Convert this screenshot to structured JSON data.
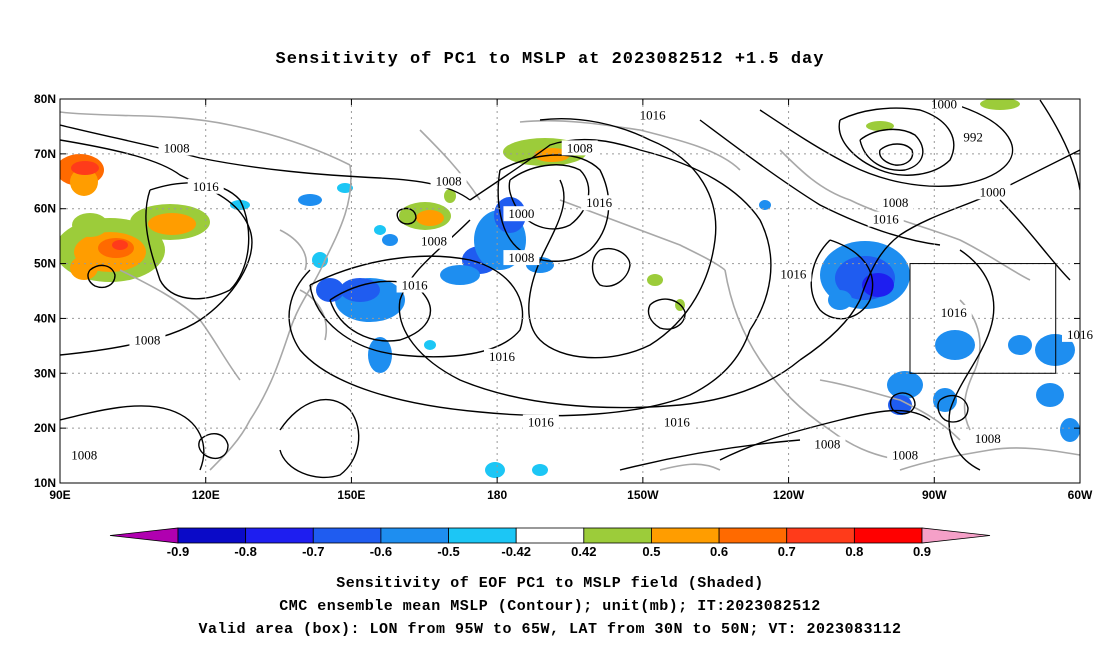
{
  "title": "Sensitivity of PC1 to MSLP at 2023082512 +1.5 day",
  "captions": [
    "Sensitivity of EOF PC1 to MSLP field (Shaded)",
    "CMC ensemble mean MSLP (Contour); unit(mb); IT:2023082512",
    "Valid area (box): LON from 95W to 65W, LAT from 30N to 50N; VT: 2023083112"
  ],
  "map": {
    "lon_range": [
      90,
      300
    ],
    "lat_range": [
      10,
      80
    ],
    "lon_ticks": [
      {
        "lon": 90,
        "label": "90E"
      },
      {
        "lon": 120,
        "label": "120E"
      },
      {
        "lon": 150,
        "label": "150E"
      },
      {
        "lon": 180,
        "label": "180"
      },
      {
        "lon": 210,
        "label": "150W"
      },
      {
        "lon": 240,
        "label": "120W"
      },
      {
        "lon": 270,
        "label": "90W"
      },
      {
        "lon": 300,
        "label": "60W"
      }
    ],
    "lat_ticks": [
      {
        "lat": 80,
        "label": "80N"
      },
      {
        "lat": 70,
        "label": "70N"
      },
      {
        "lat": 60,
        "label": "60N"
      },
      {
        "lat": 50,
        "label": "50N"
      },
      {
        "lat": 40,
        "label": "40N"
      },
      {
        "lat": 30,
        "label": "30N"
      },
      {
        "lat": 20,
        "label": "20N"
      },
      {
        "lat": 10,
        "label": "10N"
      }
    ],
    "grid": true,
    "valid_box": {
      "lon": [
        265,
        295
      ],
      "lat": [
        30,
        50
      ]
    },
    "colors": {
      "contour": "#000000",
      "coast": "#a8a8a8",
      "grid": "#999999"
    },
    "contour_labels": [
      {
        "value": "1008",
        "lon": 114,
        "lat": 71
      },
      {
        "value": "1016",
        "lon": 120,
        "lat": 64
      },
      {
        "value": "1008",
        "lon": 170,
        "lat": 65
      },
      {
        "value": "1016",
        "lon": 212,
        "lat": 77
      },
      {
        "value": "1008",
        "lon": 197,
        "lat": 71
      },
      {
        "value": "1000",
        "lon": 185,
        "lat": 59
      },
      {
        "value": "1016",
        "lon": 201,
        "lat": 61
      },
      {
        "value": "1008",
        "lon": 167,
        "lat": 54
      },
      {
        "value": "1008",
        "lon": 185,
        "lat": 51
      },
      {
        "value": "1016",
        "lon": 163,
        "lat": 46
      },
      {
        "value": "1016",
        "lon": 241,
        "lat": 48
      },
      {
        "value": "1016",
        "lon": 181,
        "lat": 33
      },
      {
        "value": "1008",
        "lon": 108,
        "lat": 36
      },
      {
        "value": "1016",
        "lon": 189,
        "lat": 21
      },
      {
        "value": "1016",
        "lon": 217,
        "lat": 21
      },
      {
        "value": "1008",
        "lon": 248,
        "lat": 17
      },
      {
        "value": "1008",
        "lon": 264,
        "lat": 15
      },
      {
        "value": "1008",
        "lon": 95,
        "lat": 15
      },
      {
        "value": "1000",
        "lon": 272,
        "lat": 79
      },
      {
        "value": "992",
        "lon": 278,
        "lat": 73
      },
      {
        "value": "1000",
        "lon": 282,
        "lat": 63
      },
      {
        "value": "1008",
        "lon": 262,
        "lat": 61
      },
      {
        "value": "1016",
        "lon": 260,
        "lat": 58
      },
      {
        "value": "1016",
        "lon": 274,
        "lat": 41
      },
      {
        "value": "1016",
        "lon": 300,
        "lat": 37
      },
      {
        "value": "1008",
        "lon": 281,
        "lat": 18
      }
    ]
  },
  "colorbar": {
    "levels": [
      "-0.9",
      "-0.8",
      "-0.7",
      "-0.6",
      "-0.5",
      "-0.42",
      "0.42",
      "0.5",
      "0.6",
      "0.7",
      "0.8",
      "0.9"
    ],
    "colors": [
      "#b000b0",
      "#0a0ac8",
      "#1e1ef0",
      "#1f5cf0",
      "#1e8ef0",
      "#1cc6f5",
      "#ffffff",
      "#9ccc3a",
      "#ff9d00",
      "#ff6a00",
      "#ff3b1a",
      "#ff0000",
      "#f5a0c8"
    ]
  }
}
